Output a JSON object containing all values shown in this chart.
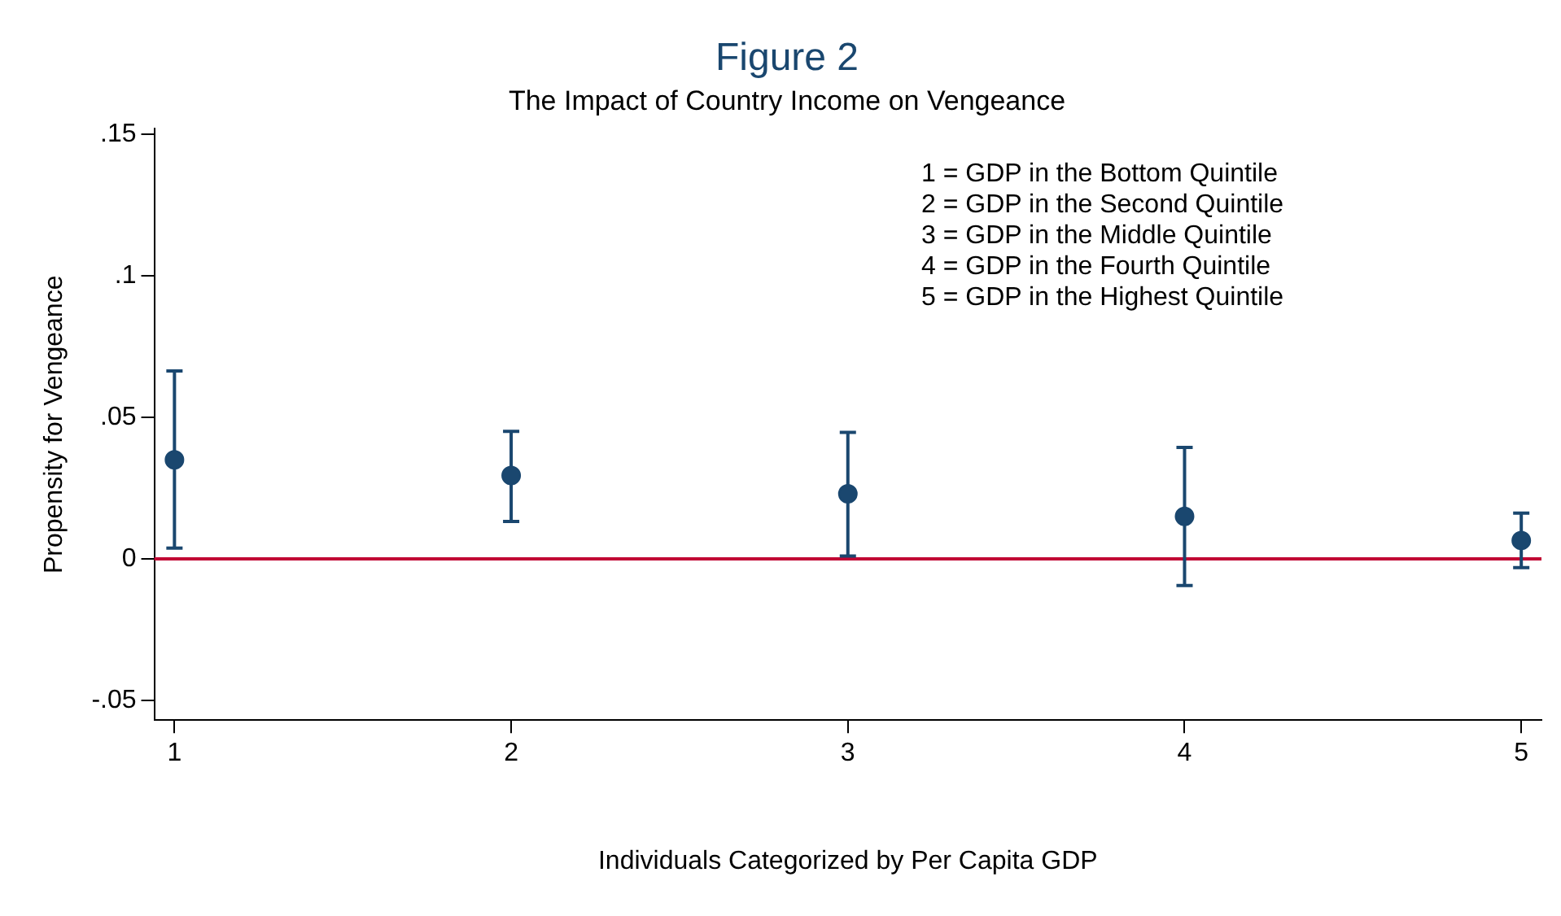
{
  "chart_data": {
    "type": "scatter",
    "title": "Figure 2",
    "subtitle": "The Impact of Country Income on Vengeance",
    "xlabel": "Individuals Categorized by Per Capita GDP",
    "ylabel": "Propensity for Vengeance",
    "x": [
      1,
      2,
      3,
      4,
      5
    ],
    "series": [
      {
        "color": "#1a476f",
        "values": [
          0.035,
          0.0295,
          0.023,
          0.015,
          0.0065
        ],
        "errors": [
          [
            0.0038,
            0.0664
          ],
          [
            0.0132,
            0.0451
          ],
          [
            0.001,
            0.0447
          ],
          [
            -0.0094,
            0.0394
          ],
          [
            -0.0031,
            0.0162
          ]
        ]
      }
    ],
    "xlim": [
      0.94,
      5.06
    ],
    "xticks": [
      1,
      2,
      3,
      4,
      5
    ],
    "ylim": [
      -0.057,
      0.152
    ],
    "yticks": [
      {
        "value": -0.05,
        "label": "-.05"
      },
      0,
      {
        "value": 0.05,
        "label": ".05"
      },
      {
        "value": 0.1,
        "label": ".1"
      },
      {
        "value": 0.15,
        "label": ".15"
      }
    ],
    "ref_lines": [
      {
        "axis": "y",
        "value": 0,
        "color": "#c10534"
      }
    ],
    "annotations": [
      "1 = GDP in the Bottom Quintile",
      "2 = GDP in the Second Quintile",
      "3 = GDP in the Middle Quintile",
      "4 = GDP in the Fourth Quintile",
      "5 = GDP in the Highest Quintile"
    ],
    "grid": false,
    "legend": false,
    "marker": "circle"
  }
}
